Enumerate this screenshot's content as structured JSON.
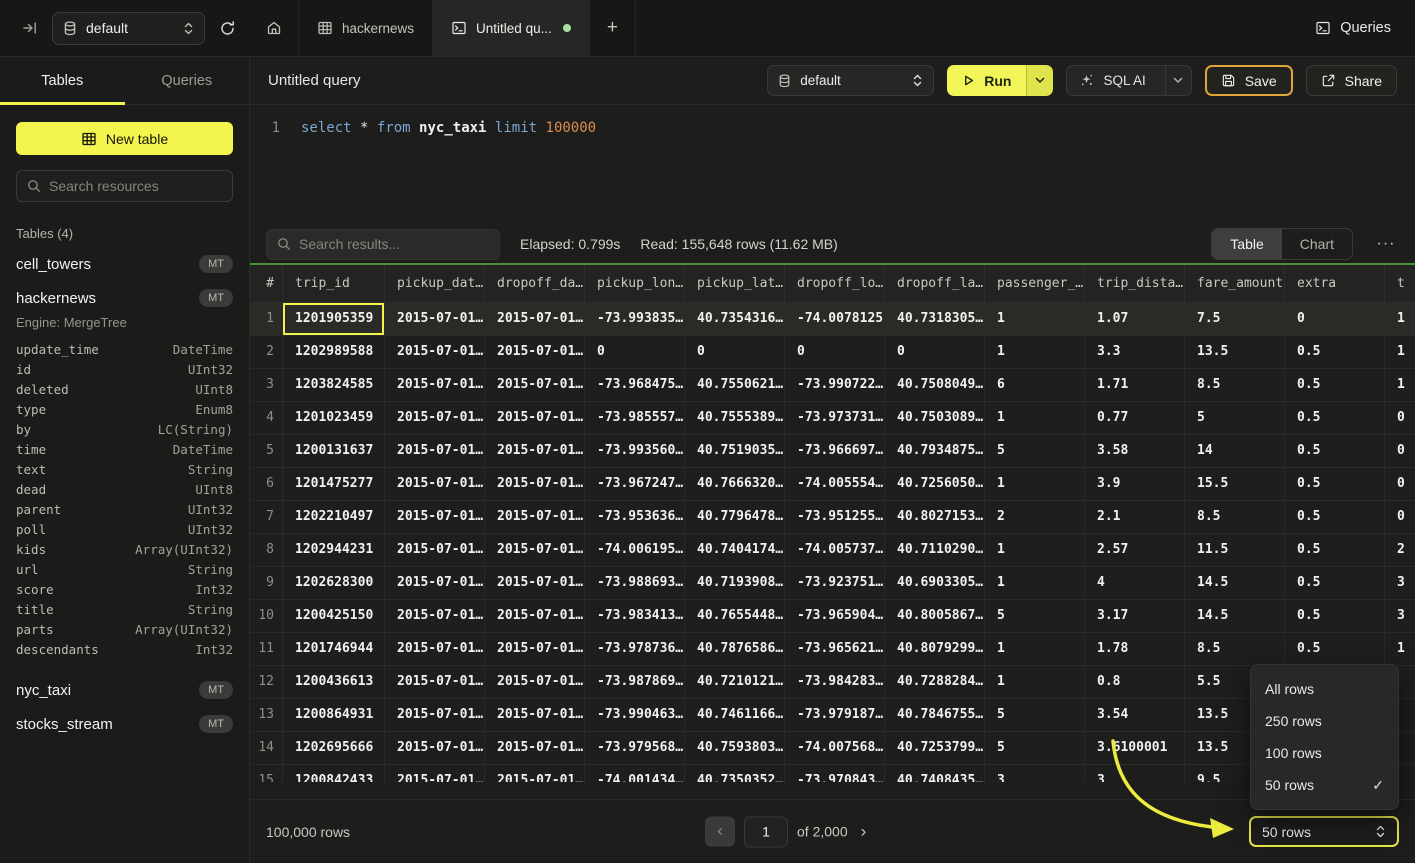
{
  "topbar": {
    "database": "default",
    "hackernews_tab": "hackernews",
    "query_tab": "Untitled qu...",
    "plus": "+",
    "queries_button": "Queries"
  },
  "sidebar": {
    "tabs": {
      "tables": "Tables",
      "queries": "Queries"
    },
    "new_table_button": "New table",
    "search_placeholder": "Search resources",
    "section_label": "Tables (4)",
    "tables": [
      {
        "name": "cell_towers",
        "badge": "MT"
      },
      {
        "name": "hackernews",
        "badge": "MT"
      },
      {
        "name": "nyc_taxi",
        "badge": "MT"
      },
      {
        "name": "stocks_stream",
        "badge": "MT"
      }
    ],
    "hackernews_engine": "Engine: MergeTree",
    "hackernews_columns": [
      {
        "name": "update_time",
        "type": "DateTime"
      },
      {
        "name": "id",
        "type": "UInt32"
      },
      {
        "name": "deleted",
        "type": "UInt8"
      },
      {
        "name": "type",
        "type": "Enum8"
      },
      {
        "name": "by",
        "type": "LC(String)"
      },
      {
        "name": "time",
        "type": "DateTime"
      },
      {
        "name": "text",
        "type": "String"
      },
      {
        "name": "dead",
        "type": "UInt8"
      },
      {
        "name": "parent",
        "type": "UInt32"
      },
      {
        "name": "poll",
        "type": "UInt32"
      },
      {
        "name": "kids",
        "type": "Array(UInt32)"
      },
      {
        "name": "url",
        "type": "String"
      },
      {
        "name": "score",
        "type": "Int32"
      },
      {
        "name": "title",
        "type": "String"
      },
      {
        "name": "parts",
        "type": "Array(UInt32)"
      },
      {
        "name": "descendants",
        "type": "Int32"
      }
    ]
  },
  "query": {
    "title": "Untitled query",
    "database": "default",
    "run_button": "Run",
    "sql_ai_button": "SQL AI",
    "save_button": "Save",
    "share_button": "Share",
    "editor": {
      "line_number": "1",
      "tokens": [
        {
          "text": "select",
          "style": "kw"
        },
        {
          "text": " ",
          "style": "plain"
        },
        {
          "text": "*",
          "style": "plain"
        },
        {
          "text": " ",
          "style": "plain"
        },
        {
          "text": "from",
          "style": "kw"
        },
        {
          "text": " ",
          "style": "plain"
        },
        {
          "text": "nyc_taxi",
          "style": "ident"
        },
        {
          "text": " ",
          "style": "plain"
        },
        {
          "text": "limit",
          "style": "kw"
        },
        {
          "text": " ",
          "style": "plain"
        },
        {
          "text": "100000",
          "style": "num"
        }
      ]
    }
  },
  "results": {
    "search_placeholder": "Search results...",
    "elapsed": "Elapsed: 0.799s",
    "read": "Read: 155,648 rows (11.62 MB)",
    "view_toggle": {
      "table": "Table",
      "chart": "Chart"
    },
    "ellipsis": "···",
    "columns": [
      "#",
      "trip_id",
      "pickup_dat…",
      "dropoff_da…",
      "pickup_lon…",
      "pickup_lat…",
      "dropoff_lo…",
      "dropoff_la…",
      "passenger_…",
      "trip_dista…",
      "fare_amount",
      "extra",
      "t"
    ],
    "rows": [
      [
        "1",
        "1201905359",
        "2015-07-01…",
        "2015-07-01…",
        "-73.993835…",
        "40.7354316…",
        "-74.0078125",
        "40.7318305…",
        "1",
        "1.07",
        "7.5",
        "0",
        "1"
      ],
      [
        "2",
        "1202989588",
        "2015-07-01…",
        "2015-07-01…",
        "0",
        "0",
        "0",
        "0",
        "1",
        "3.3",
        "13.5",
        "0.5",
        "1"
      ],
      [
        "3",
        "1203824585",
        "2015-07-01…",
        "2015-07-01…",
        "-73.968475…",
        "40.7550621…",
        "-73.990722…",
        "40.7508049…",
        "6",
        "1.71",
        "8.5",
        "0.5",
        "1"
      ],
      [
        "4",
        "1201023459",
        "2015-07-01…",
        "2015-07-01…",
        "-73.985557…",
        "40.7555389…",
        "-73.973731…",
        "40.7503089…",
        "1",
        "0.77",
        "5",
        "0.5",
        "0"
      ],
      [
        "5",
        "1200131637",
        "2015-07-01…",
        "2015-07-01…",
        "-73.993560…",
        "40.7519035…",
        "-73.966697…",
        "40.7934875…",
        "5",
        "3.58",
        "14",
        "0.5",
        "0"
      ],
      [
        "6",
        "1201475277",
        "2015-07-01…",
        "2015-07-01…",
        "-73.967247…",
        "40.7666320…",
        "-74.005554…",
        "40.7256050…",
        "1",
        "3.9",
        "15.5",
        "0.5",
        "0"
      ],
      [
        "7",
        "1202210497",
        "2015-07-01…",
        "2015-07-01…",
        "-73.953636…",
        "40.7796478…",
        "-73.951255…",
        "40.8027153…",
        "2",
        "2.1",
        "8.5",
        "0.5",
        "0"
      ],
      [
        "8",
        "1202944231",
        "2015-07-01…",
        "2015-07-01…",
        "-74.006195…",
        "40.7404174…",
        "-74.005737…",
        "40.7110290…",
        "1",
        "2.57",
        "11.5",
        "0.5",
        "2"
      ],
      [
        "9",
        "1202628300",
        "2015-07-01…",
        "2015-07-01…",
        "-73.988693…",
        "40.7193908…",
        "-73.923751…",
        "40.6903305…",
        "1",
        "4",
        "14.5",
        "0.5",
        "3"
      ],
      [
        "10",
        "1200425150",
        "2015-07-01…",
        "2015-07-01…",
        "-73.983413…",
        "40.7655448…",
        "-73.965904…",
        "40.8005867…",
        "5",
        "3.17",
        "14.5",
        "0.5",
        "3"
      ],
      [
        "11",
        "1201746944",
        "2015-07-01…",
        "2015-07-01…",
        "-73.978736…",
        "40.7876586…",
        "-73.965621…",
        "40.8079299…",
        "1",
        "1.78",
        "8.5",
        "0.5",
        "1"
      ],
      [
        "12",
        "1200436613",
        "2015-07-01…",
        "2015-07-01…",
        "-73.987869…",
        "40.7210121…",
        "-73.984283…",
        "40.7288284…",
        "1",
        "0.8",
        "5.5",
        "0.5",
        ""
      ],
      [
        "13",
        "1200864931",
        "2015-07-01…",
        "2015-07-01…",
        "-73.990463…",
        "40.7461166…",
        "-73.979187…",
        "40.7846755…",
        "5",
        "3.54",
        "13.5",
        "0.5",
        ""
      ],
      [
        "14",
        "1202695666",
        "2015-07-01…",
        "2015-07-01…",
        "-73.979568…",
        "40.7593803…",
        "-74.007568…",
        "40.7253799…",
        "5",
        "3.6100001",
        "13.5",
        "0.5",
        ""
      ],
      [
        "15",
        "1200842433",
        "2015-07-01…",
        "2015-07-01…",
        "-74.001434…",
        "40.7350352…",
        "-73.970843…",
        "40.7408435…",
        "3",
        "3",
        "9.5",
        "0.5",
        ""
      ]
    ],
    "footer": {
      "total_rows": "100,000 rows",
      "prev": "‹",
      "page": "1",
      "page_count": "of 2,000",
      "next": "›",
      "page_size": "50 rows"
    },
    "page_size_menu": [
      {
        "label": "All rows",
        "check": ""
      },
      {
        "label": "250 rows",
        "check": ""
      },
      {
        "label": "100 rows",
        "check": ""
      },
      {
        "label": "50 rows",
        "check": "✓"
      }
    ]
  },
  "colors": {
    "accent_yellow": "#f2f44e",
    "save_highlight": "#e2a43c",
    "table_accent_green": "#4c8f3c",
    "tab_dot_green": "#a9dfa2"
  }
}
